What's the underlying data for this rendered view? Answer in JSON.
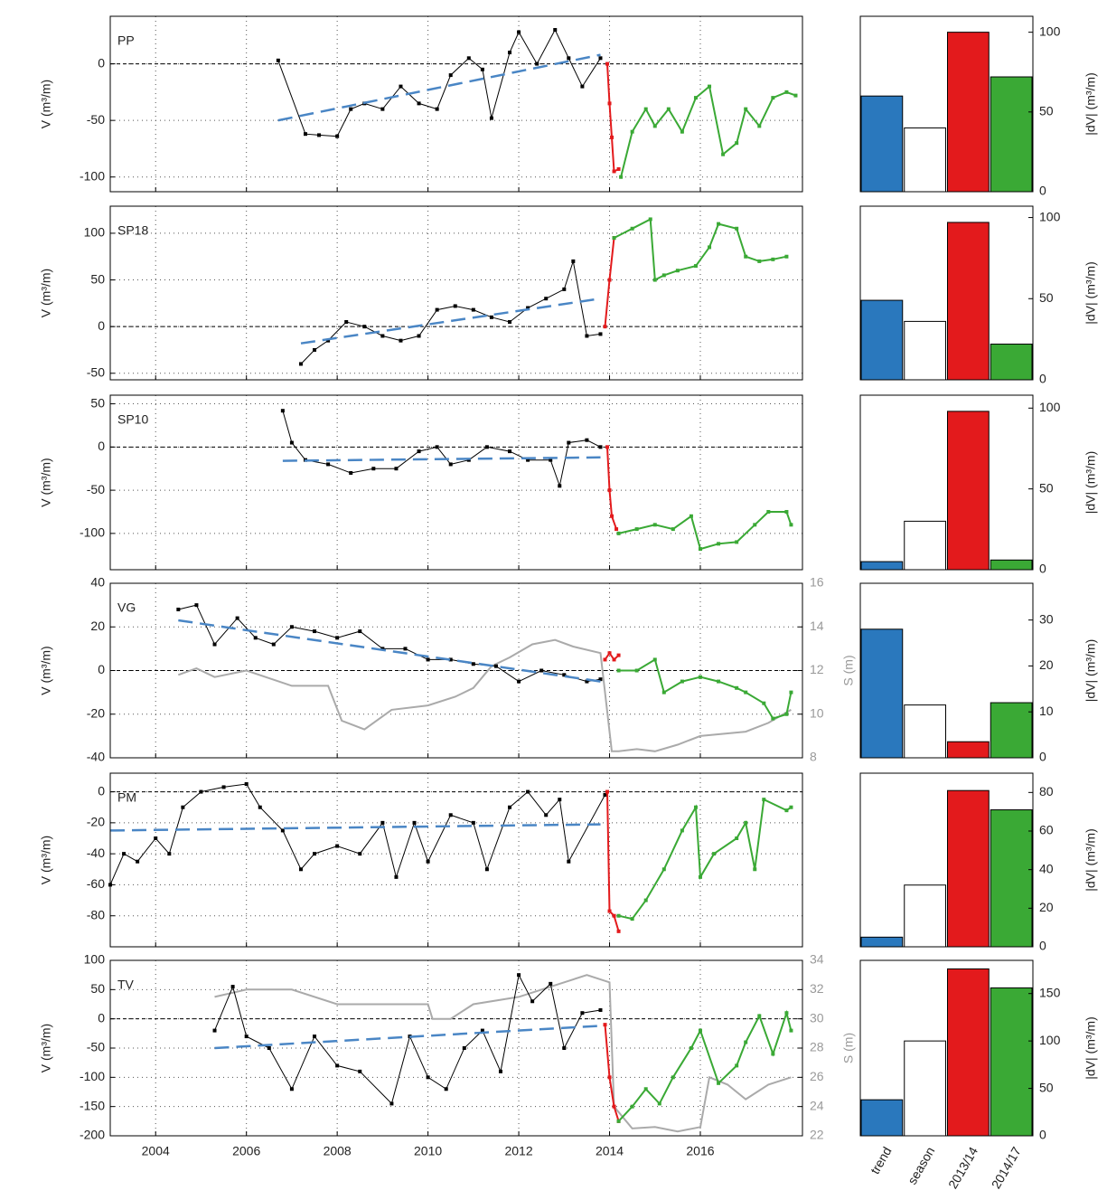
{
  "chart_data": [
    {
      "type": "line",
      "label": "PP",
      "ylabel": "V (m³/m)",
      "xlim": [
        2003,
        2018.25
      ],
      "ylim": [
        -113,
        42
      ],
      "yticks": [
        -100,
        -50,
        0
      ],
      "reference_line": 0,
      "grid": true,
      "series": [
        {
          "color": "#000000",
          "marker": true,
          "x": [
            2006.7,
            2007.3,
            2007.6,
            2008.0,
            2008.3,
            2008.6,
            2009.0,
            2009.4,
            2009.8,
            2010.2,
            2010.5,
            2010.9,
            2011.2,
            2011.4,
            2011.8,
            2012.0,
            2012.4,
            2012.8,
            2013.1,
            2013.4,
            2013.8
          ],
          "values": [
            3,
            -62,
            -63,
            -64,
            -40,
            -35,
            -40,
            -20,
            -35,
            -40,
            -10,
            5,
            -5,
            -48,
            10,
            28,
            0,
            30,
            5,
            -20,
            5
          ]
        },
        {
          "color": "#e31a1c",
          "marker": true,
          "x": [
            2013.95,
            2014.0,
            2014.05,
            2014.1,
            2014.2
          ],
          "values": [
            0,
            -35,
            -65,
            -95,
            -93
          ]
        },
        {
          "color": "#3aa935",
          "marker": true,
          "x": [
            2014.25,
            2014.5,
            2014.8,
            2015.0,
            2015.3,
            2015.6,
            2015.9,
            2016.2,
            2016.5,
            2016.8,
            2017.0,
            2017.3,
            2017.6,
            2017.9,
            2018.1
          ],
          "values": [
            -100,
            -60,
            -40,
            -55,
            -40,
            -60,
            -30,
            -20,
            -80,
            -70,
            -40,
            -55,
            -30,
            -25,
            -28
          ]
        },
        {
          "color": "#4a86c5",
          "dash": true,
          "x": [
            2006.7,
            2013.8
          ],
          "values": [
            -50,
            8
          ]
        }
      ]
    },
    {
      "type": "bar",
      "ylabel": "|dV| (m³/m)",
      "ylim": [
        0,
        110
      ],
      "yticks": [
        0,
        50,
        100
      ],
      "colors": [
        "#2a78bd",
        "#ffffff",
        "#e31a1c",
        "#3aa935"
      ],
      "values": [
        60,
        40,
        100,
        72
      ]
    },
    {
      "type": "line",
      "label": "SP18",
      "ylabel": "V (m³/m)",
      "xlim": [
        2003,
        2018.25
      ],
      "ylim": [
        -57,
        129
      ],
      "yticks": [
        -50,
        0,
        50,
        100
      ],
      "reference_line": 0,
      "grid": true,
      "series": [
        {
          "color": "#000000",
          "marker": true,
          "x": [
            2007.2,
            2007.5,
            2007.8,
            2008.2,
            2008.6,
            2009.0,
            2009.4,
            2009.8,
            2010.2,
            2010.6,
            2011.0,
            2011.4,
            2011.8,
            2012.2,
            2012.6,
            2013.0,
            2013.2,
            2013.5,
            2013.8
          ],
          "values": [
            -40,
            -25,
            -15,
            5,
            0,
            -10,
            -15,
            -10,
            18,
            22,
            18,
            10,
            5,
            20,
            30,
            40,
            70,
            -10,
            -8
          ]
        },
        {
          "color": "#e31a1c",
          "marker": true,
          "x": [
            2013.9,
            2014.0,
            2014.1
          ],
          "values": [
            0,
            50,
            95
          ]
        },
        {
          "color": "#3aa935",
          "marker": true,
          "x": [
            2014.1,
            2014.5,
            2014.9,
            2015.0,
            2015.2,
            2015.5,
            2015.9,
            2016.2,
            2016.4,
            2016.8,
            2017.0,
            2017.3,
            2017.6,
            2017.9
          ],
          "values": [
            95,
            105,
            115,
            50,
            55,
            60,
            65,
            85,
            110,
            105,
            75,
            70,
            72,
            75
          ]
        },
        {
          "color": "#4a86c5",
          "dash": true,
          "x": [
            2007.2,
            2013.8
          ],
          "values": [
            -18,
            30
          ]
        }
      ]
    },
    {
      "type": "bar",
      "ylabel": "|dV| (m³/m)",
      "ylim": [
        0,
        107
      ],
      "yticks": [
        0,
        50,
        100
      ],
      "colors": [
        "#2a78bd",
        "#ffffff",
        "#e31a1c",
        "#3aa935"
      ],
      "values": [
        49,
        36,
        97,
        22
      ]
    },
    {
      "type": "line",
      "label": "SP10",
      "ylabel": "V (m³/m)",
      "xlim": [
        2003,
        2018.25
      ],
      "ylim": [
        -142,
        60
      ],
      "yticks": [
        -100,
        -50,
        0,
        50
      ],
      "reference_line": 0,
      "grid": true,
      "series": [
        {
          "color": "#000000",
          "marker": true,
          "x": [
            2006.8,
            2007.0,
            2007.3,
            2007.8,
            2008.3,
            2008.8,
            2009.3,
            2009.8,
            2010.2,
            2010.5,
            2010.9,
            2011.3,
            2011.8,
            2012.2,
            2012.7,
            2012.9,
            2013.1,
            2013.5,
            2013.8
          ],
          "values": [
            42,
            5,
            -15,
            -20,
            -30,
            -25,
            -25,
            -5,
            0,
            -20,
            -15,
            0,
            -5,
            -15,
            -15,
            -45,
            5,
            8,
            0
          ]
        },
        {
          "color": "#e31a1c",
          "marker": true,
          "x": [
            2013.95,
            2014.0,
            2014.05,
            2014.15
          ],
          "values": [
            0,
            -50,
            -80,
            -95
          ]
        },
        {
          "color": "#3aa935",
          "marker": true,
          "x": [
            2014.2,
            2014.6,
            2015.0,
            2015.4,
            2015.8,
            2016.0,
            2016.4,
            2016.8,
            2017.2,
            2017.5,
            2017.9,
            2018.0
          ],
          "values": [
            -100,
            -95,
            -90,
            -95,
            -80,
            -118,
            -112,
            -110,
            -90,
            -75,
            -75,
            -90
          ]
        },
        {
          "color": "#4a86c5",
          "dash": true,
          "x": [
            2006.8,
            2013.8
          ],
          "values": [
            -16,
            -12
          ]
        }
      ]
    },
    {
      "type": "bar",
      "ylabel": "|dV| (m³/m)",
      "ylim": [
        0,
        108
      ],
      "yticks": [
        0,
        50,
        100
      ],
      "colors": [
        "#2a78bd",
        "#ffffff",
        "#e31a1c",
        "#3aa935"
      ],
      "values": [
        5,
        30,
        98,
        6
      ]
    },
    {
      "type": "line",
      "label": "VG",
      "ylabel": "V (m³/m)",
      "y2label": "S (m)",
      "xlim": [
        2003,
        2018.25
      ],
      "ylim": [
        -40,
        40
      ],
      "yticks": [
        -40,
        -20,
        0,
        20,
        40
      ],
      "y2lim": [
        8,
        16
      ],
      "y2ticks": [
        8,
        10,
        12,
        14,
        16
      ],
      "reference_line": 0,
      "grid": true,
      "series": [
        {
          "color": "#aaaaaa",
          "axis": "y2",
          "x": [
            2004.5,
            2004.9,
            2005.3,
            2006,
            2007,
            2007.8,
            2008.1,
            2008.6,
            2009.2,
            2010,
            2010.6,
            2011.0,
            2011.4,
            2011.8,
            2012.3,
            2012.8,
            2013.2,
            2013.8,
            2014.05,
            2014.2,
            2014.6,
            2015.0,
            2015.5,
            2016,
            2016.5,
            2017,
            2017.5,
            2018
          ],
          "values": [
            11.8,
            12.1,
            11.7,
            12,
            11.3,
            11.3,
            9.7,
            9.3,
            10.2,
            10.4,
            10.8,
            11.2,
            12.2,
            12.6,
            13.2,
            13.4,
            13.1,
            12.8,
            8.3,
            8.3,
            8.4,
            8.3,
            8.6,
            9,
            9.1,
            9.2,
            9.6,
            10.2
          ]
        },
        {
          "color": "#000000",
          "marker": true,
          "x": [
            2004.5,
            2004.9,
            2005.3,
            2005.8,
            2006.2,
            2006.6,
            2007.0,
            2007.5,
            2008.0,
            2008.5,
            2009.0,
            2009.5,
            2010.0,
            2010.5,
            2011.0,
            2011.5,
            2012.0,
            2012.5,
            2013.0,
            2013.5,
            2013.8
          ],
          "values": [
            28,
            30,
            12,
            24,
            15,
            12,
            20,
            18,
            15,
            18,
            10,
            10,
            5,
            5,
            3,
            2,
            -5,
            0,
            -2,
            -5,
            -4
          ]
        },
        {
          "color": "#e31a1c",
          "marker": true,
          "x": [
            2013.9,
            2014.0,
            2014.1,
            2014.2
          ],
          "values": [
            5,
            8,
            5,
            7
          ]
        },
        {
          "color": "#3aa935",
          "marker": true,
          "x": [
            2014.2,
            2014.6,
            2015.0,
            2015.2,
            2015.6,
            2016.0,
            2016.4,
            2016.8,
            2017.0,
            2017.4,
            2017.6,
            2017.9,
            2018.0
          ],
          "values": [
            0,
            0,
            5,
            -10,
            -5,
            -3,
            -5,
            -8,
            -10,
            -15,
            -22,
            -20,
            -10
          ]
        },
        {
          "color": "#4a86c5",
          "dash": true,
          "x": [
            2004.5,
            2013.8
          ],
          "values": [
            23,
            -5
          ]
        }
      ]
    },
    {
      "type": "bar",
      "ylabel": "|dV| (m³/m)",
      "ylim": [
        0,
        38
      ],
      "yticks": [
        0,
        10,
        20,
        30
      ],
      "colors": [
        "#2a78bd",
        "#ffffff",
        "#e31a1c",
        "#3aa935"
      ],
      "values": [
        28,
        11.5,
        3.5,
        12
      ]
    },
    {
      "type": "line",
      "label": "PM",
      "ylabel": "V (m³/m)",
      "xlim": [
        2003,
        2018.25
      ],
      "ylim": [
        -100,
        12
      ],
      "yticks": [
        -80,
        -60,
        -40,
        -20,
        0
      ],
      "reference_line": 0,
      "grid": true,
      "series": [
        {
          "color": "#000000",
          "marker": true,
          "x": [
            2003.0,
            2003.3,
            2003.6,
            2004.0,
            2004.3,
            2004.6,
            2005.0,
            2005.5,
            2006.0,
            2006.3,
            2006.8,
            2007.2,
            2007.5,
            2008.0,
            2008.5,
            2009.0,
            2009.3,
            2009.7,
            2010.0,
            2010.5,
            2011.0,
            2011.3,
            2011.8,
            2012.2,
            2012.6,
            2012.9,
            2013.1,
            2013.9
          ],
          "values": [
            -60,
            -40,
            -45,
            -30,
            -40,
            -10,
            0,
            3,
            5,
            -10,
            -25,
            -50,
            -40,
            -35,
            -40,
            -20,
            -55,
            -20,
            -45,
            -15,
            -20,
            -50,
            -10,
            0,
            -15,
            -5,
            -45,
            -2
          ]
        },
        {
          "color": "#e31a1c",
          "marker": true,
          "x": [
            2013.95,
            2014.0,
            2014.1,
            2014.2
          ],
          "values": [
            0,
            -77,
            -80,
            -90
          ]
        },
        {
          "color": "#3aa935",
          "marker": true,
          "x": [
            2014.2,
            2014.5,
            2014.8,
            2015.2,
            2015.6,
            2015.9,
            2016.0,
            2016.3,
            2016.8,
            2017.0,
            2017.2,
            2017.4,
            2017.9,
            2018.0
          ],
          "values": [
            -80,
            -82,
            -70,
            -50,
            -25,
            -10,
            -55,
            -40,
            -30,
            -20,
            -50,
            -5,
            -12,
            -10
          ]
        },
        {
          "color": "#4a86c5",
          "dash": true,
          "x": [
            2003,
            2013.8
          ],
          "values": [
            -25,
            -21
          ]
        }
      ]
    },
    {
      "type": "bar",
      "ylabel": "|dV| (m³/m)",
      "ylim": [
        0,
        90
      ],
      "yticks": [
        0,
        20,
        40,
        60,
        80
      ],
      "colors": [
        "#2a78bd",
        "#ffffff",
        "#e31a1c",
        "#3aa935"
      ],
      "values": [
        5,
        32,
        81,
        71
      ]
    },
    {
      "type": "line",
      "label": "TV",
      "ylabel": "V (m³/m)",
      "y2label": "S (m)",
      "xlim": [
        2003,
        2018.25
      ],
      "ylim": [
        -200,
        100
      ],
      "yticks": [
        -200,
        -150,
        -100,
        -50,
        0,
        50,
        100
      ],
      "y2lim": [
        22,
        34
      ],
      "y2ticks": [
        22,
        24,
        26,
        28,
        30,
        32,
        34
      ],
      "xticks": [
        2004,
        2006,
        2008,
        2010,
        2012,
        2014,
        2016
      ],
      "reference_line": 0,
      "grid": true,
      "series": [
        {
          "color": "#aaaaaa",
          "axis": "y2",
          "x": [
            2005.3,
            2006,
            2007,
            2008,
            2009,
            2010,
            2010.1,
            2010.5,
            2011,
            2012,
            2013,
            2013.5,
            2014.0,
            2014.1,
            2014.5,
            2015,
            2015.5,
            2016,
            2016.2,
            2016.6,
            2017,
            2017.5,
            2018
          ],
          "values": [
            31.5,
            32,
            32,
            31,
            31,
            31,
            30,
            30,
            31,
            31.5,
            32.5,
            33,
            32.5,
            24,
            22.5,
            22.6,
            22.3,
            22.6,
            26,
            25.5,
            24.5,
            25.5,
            26
          ]
        },
        {
          "color": "#000000",
          "marker": true,
          "x": [
            2005.3,
            2005.7,
            2006.0,
            2006.5,
            2007.0,
            2007.5,
            2008.0,
            2008.5,
            2009.2,
            2009.6,
            2010.0,
            2010.4,
            2010.8,
            2011.2,
            2011.6,
            2012.0,
            2012.3,
            2012.7,
            2013.0,
            2013.4,
            2013.8
          ],
          "values": [
            -20,
            55,
            -30,
            -50,
            -120,
            -30,
            -80,
            -90,
            -145,
            -30,
            -100,
            -120,
            -50,
            -20,
            -90,
            75,
            30,
            60,
            -50,
            10,
            15
          ]
        },
        {
          "color": "#e31a1c",
          "marker": true,
          "x": [
            2013.9,
            2014.0,
            2014.1,
            2014.2
          ],
          "values": [
            -10,
            -100,
            -150,
            -175
          ]
        },
        {
          "color": "#3aa935",
          "marker": true,
          "x": [
            2014.2,
            2014.5,
            2014.8,
            2015.1,
            2015.4,
            2015.8,
            2016.0,
            2016.4,
            2016.8,
            2017.0,
            2017.3,
            2017.6,
            2017.9,
            2018.0
          ],
          "values": [
            -175,
            -150,
            -120,
            -145,
            -100,
            -50,
            -20,
            -110,
            -80,
            -40,
            5,
            -60,
            10,
            -20
          ]
        },
        {
          "color": "#4a86c5",
          "dash": true,
          "x": [
            2005.3,
            2013.8
          ],
          "values": [
            -50,
            -12
          ]
        }
      ]
    },
    {
      "type": "bar",
      "ylabel": "|dV| (m³/m)",
      "ylim": [
        0,
        185
      ],
      "yticks": [
        0,
        50,
        100,
        150
      ],
      "colors": [
        "#2a78bd",
        "#ffffff",
        "#e31a1c",
        "#3aa935"
      ],
      "categories": [
        "trend",
        "season",
        "2013/14",
        "2014/17"
      ],
      "values": [
        38,
        100,
        176,
        156
      ]
    }
  ]
}
